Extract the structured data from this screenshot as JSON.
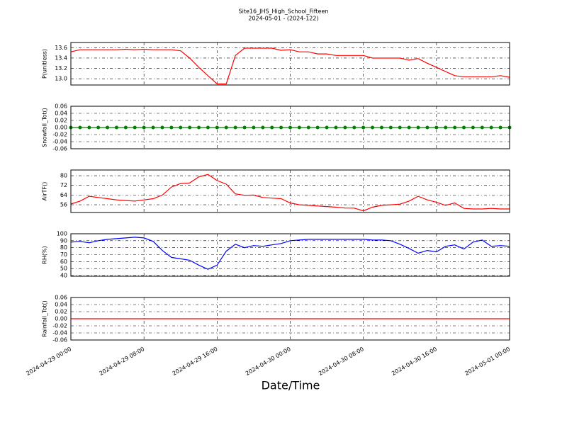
{
  "title": "Site16_JHS_High_School_Fifteen",
  "subtitle": "2024-05-01 - (2024-122)",
  "x_axis": {
    "label": "Date/Time",
    "xlim": [
      "2024-04-29 00:00",
      "2024-05-01 00:00"
    ],
    "xticks": [
      "2024-04-29 00:00",
      "2024-04-29 08:00",
      "2024-04-29 16:00",
      "2024-04-30 00:00",
      "2024-04-30 08:00",
      "2024-04-30 16:00",
      "2024-05-01 00:00"
    ],
    "x": [
      "2024-04-29 00:00",
      "2024-04-29 01:00",
      "2024-04-29 02:00",
      "2024-04-29 03:00",
      "2024-04-29 04:00",
      "2024-04-29 05:00",
      "2024-04-29 06:00",
      "2024-04-29 07:00",
      "2024-04-29 08:00",
      "2024-04-29 09:00",
      "2024-04-29 10:00",
      "2024-04-29 11:00",
      "2024-04-29 12:00",
      "2024-04-29 13:00",
      "2024-04-29 14:00",
      "2024-04-29 15:00",
      "2024-04-29 16:00",
      "2024-04-29 17:00",
      "2024-04-29 18:00",
      "2024-04-29 19:00",
      "2024-04-29 20:00",
      "2024-04-29 21:00",
      "2024-04-29 22:00",
      "2024-04-29 23:00",
      "2024-04-30 00:00",
      "2024-04-30 01:00",
      "2024-04-30 02:00",
      "2024-04-30 03:00",
      "2024-04-30 04:00",
      "2024-04-30 05:00",
      "2024-04-30 06:00",
      "2024-04-30 07:00",
      "2024-04-30 08:00",
      "2024-04-30 09:00",
      "2024-04-30 10:00",
      "2024-04-30 11:00",
      "2024-04-30 12:00",
      "2024-04-30 13:00",
      "2024-04-30 14:00",
      "2024-04-30 15:00",
      "2024-04-30 16:00",
      "2024-04-30 17:00",
      "2024-04-30 18:00",
      "2024-04-30 19:00",
      "2024-04-30 20:00",
      "2024-04-30 21:00",
      "2024-04-30 22:00",
      "2024-04-30 23:00",
      "2024-05-01 00:00"
    ]
  },
  "chart_data": [
    {
      "type": "line",
      "y_label": "P(unitless)",
      "color": "#ff0000",
      "grid": true,
      "ylim": [
        12.88,
        13.7
      ],
      "yticks": [
        {
          "value": 13,
          "label": "13.0"
        },
        {
          "value": 13.2,
          "label": "13.2"
        },
        {
          "value": 13.4,
          "label": "13.4"
        },
        {
          "value": 13.6,
          "label": "13.6"
        }
      ],
      "values": [
        13.52,
        13.56,
        13.56,
        13.56,
        13.56,
        13.56,
        13.57,
        13.56,
        13.57,
        13.56,
        13.56,
        13.56,
        13.54,
        13.4,
        13.22,
        13.06,
        12.9,
        12.9,
        13.45,
        13.59,
        13.59,
        13.59,
        13.59,
        13.55,
        13.56,
        13.52,
        13.52,
        13.48,
        13.48,
        13.45,
        13.45,
        13.45,
        13.45,
        13.4,
        13.4,
        13.4,
        13.4,
        13.36,
        13.39,
        13.3,
        13.22,
        13.14,
        13.06,
        13.04,
        13.04,
        13.04,
        13.04,
        13.06,
        13.03
      ]
    },
    {
      "type": "line",
      "y_label": "Snowfall_Tot()",
      "color": "#008000",
      "marker": true,
      "grid": true,
      "ylim": [
        -0.06,
        0.06
      ],
      "yticks": [
        -0.06,
        -0.04,
        -0.02,
        {
          "value": 0,
          "label": "0.00"
        },
        0.02,
        0.04,
        0.06
      ],
      "values": [
        0,
        0,
        0,
        0,
        0,
        0,
        0,
        0,
        0,
        0,
        0,
        0,
        0,
        0,
        0,
        0,
        0,
        0,
        0,
        0,
        0,
        0,
        0,
        0,
        0,
        0,
        0,
        0,
        0,
        0,
        0,
        0,
        0,
        0,
        0,
        0,
        0,
        0,
        0,
        0,
        0,
        0,
        0,
        0,
        0,
        0,
        0,
        0,
        0
      ]
    },
    {
      "type": "line",
      "y_label": "AirTF()",
      "color": "#ff0000",
      "grid": true,
      "ylim": [
        49.6,
        84.7
      ],
      "yticks": [
        56,
        64,
        72,
        80
      ],
      "values": [
        56.6,
        59,
        63,
        62,
        61,
        60,
        59.5,
        59,
        60,
        61,
        64,
        70.6,
        73.5,
        74,
        79,
        81,
        76,
        73,
        65,
        63.8,
        64,
        62,
        61.5,
        61,
        57.5,
        56,
        55.5,
        55,
        54.5,
        54,
        53.3,
        53.2,
        51,
        54,
        55.5,
        56,
        56.5,
        59,
        63,
        60,
        58,
        55.5,
        57.5,
        53,
        52.5,
        52.5,
        53,
        52.5,
        52.5
      ]
    },
    {
      "type": "line",
      "y_label": "RH(%)",
      "color": "#0000ff",
      "grid": true,
      "ylim": [
        39,
        100
      ],
      "yticks": [
        40,
        50,
        60,
        70,
        80,
        90,
        100
      ],
      "values": [
        88,
        89,
        87,
        90,
        92,
        93,
        94,
        95,
        94,
        89,
        76,
        66,
        64,
        62,
        55,
        49,
        55,
        75,
        85,
        80,
        83,
        82,
        84,
        86,
        90,
        91,
        92,
        92,
        92,
        92,
        92,
        92,
        92,
        91,
        91,
        90,
        85,
        79,
        72,
        76,
        74,
        82,
        84,
        78,
        88,
        91,
        82,
        83,
        82
      ]
    },
    {
      "type": "line",
      "y_label": "Rainfall_Tot()",
      "color": "#ff0000",
      "grid": true,
      "ylim": [
        -0.06,
        0.06
      ],
      "yticks": [
        -0.06,
        -0.04,
        -0.02,
        {
          "value": 0,
          "label": "0.00"
        },
        0.02,
        0.04,
        0.06
      ],
      "values": [
        0,
        0,
        0,
        0,
        0,
        0,
        0,
        0,
        0,
        0,
        0,
        0,
        0,
        0,
        0,
        0,
        0,
        0,
        0,
        0,
        0,
        0,
        0,
        0,
        0,
        0,
        0,
        0,
        0,
        0,
        0,
        0,
        0,
        0,
        0,
        0,
        0,
        0,
        0,
        0,
        0,
        0,
        0,
        0,
        0,
        0,
        0,
        0,
        0
      ]
    }
  ]
}
